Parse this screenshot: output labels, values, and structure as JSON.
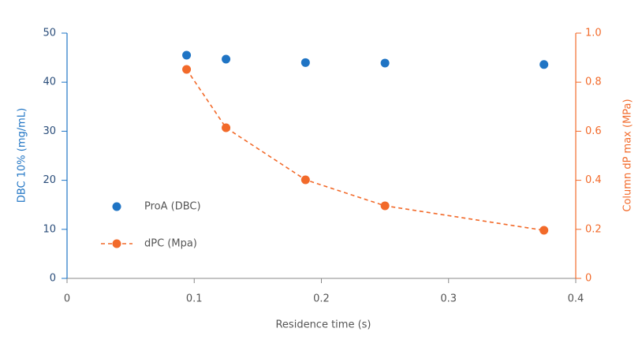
{
  "chart_data": {
    "type": "scatter",
    "x_label": "Residence time (s)",
    "y_label": "DBC 10% (mg/mL)",
    "y2_label": "Column dP max (MPa)",
    "x": [
      0.094,
      0.125,
      0.1875,
      0.25,
      0.375
    ],
    "series": [
      {
        "name": "ProA (DBC)",
        "color": "#1f74c4",
        "type": "scatter",
        "values": [
          45.5,
          44.7,
          44.0,
          43.9,
          43.6
        ]
      },
      {
        "name": "dPC (Mpa)",
        "color": "#f26a2a",
        "type": "line",
        "dashed": true,
        "axis": "y2",
        "values": [
          0.852,
          0.614,
          0.402,
          0.296,
          0.196
        ]
      }
    ],
    "xlim": [
      0,
      0.4
    ],
    "xticks": [
      0,
      0.1,
      0.2,
      0.3,
      0.4
    ],
    "ylim": [
      0,
      50
    ],
    "yticks": [
      0,
      10,
      20,
      30,
      40,
      50
    ],
    "y2lim": [
      0,
      1
    ],
    "y2ticks": [
      0,
      0.2,
      0.4,
      0.6,
      0.8,
      {
        "value": 1,
        "label": "1.0"
      }
    ],
    "legend": "left"
  }
}
